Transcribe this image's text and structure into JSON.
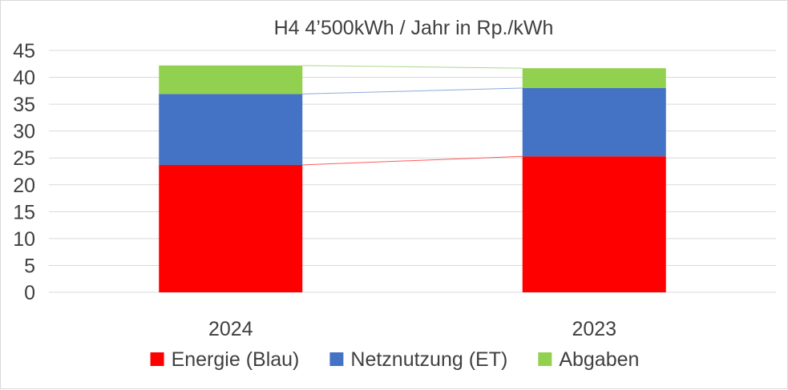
{
  "chart_data": {
    "type": "bar",
    "stacked": true,
    "title": "H4 4’500kWh / Jahr in Rp./kWh",
    "categories": [
      "2024",
      "2023"
    ],
    "series": [
      {
        "name": "Energie (Blau)",
        "color": "#ff0000",
        "series_line_color": "#ff5b5b",
        "values": [
          23.7,
          25.3
        ]
      },
      {
        "name": "Netznutzung (ET)",
        "color": "#4472c4",
        "series_line_color": "#8eaadb",
        "values": [
          13.2,
          12.7
        ]
      },
      {
        "name": "Abgaben",
        "color": "#92d050",
        "series_line_color": "#a9d88a",
        "values": [
          5.3,
          3.7
        ]
      }
    ],
    "ylim": [
      0,
      45
    ],
    "yticks": [
      0,
      5,
      10,
      15,
      20,
      25,
      30,
      35,
      40,
      45
    ],
    "grid": true,
    "series_lines": true,
    "legend_position": "bottom"
  }
}
